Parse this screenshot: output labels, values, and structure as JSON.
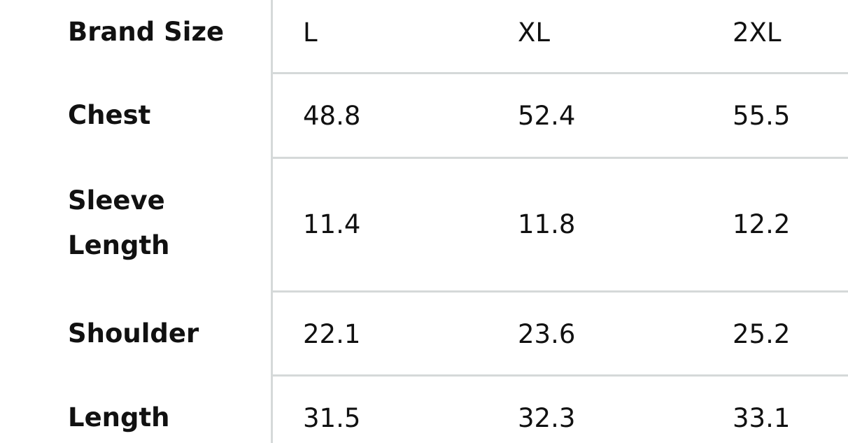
{
  "table": {
    "rows": [
      {
        "label": "Brand Size",
        "values": [
          "L",
          "XL",
          "2XL"
        ]
      },
      {
        "label": "Chest",
        "values": [
          "48.8",
          "52.4",
          "55.5"
        ]
      },
      {
        "label": "Sleeve Length",
        "values": [
          "11.4",
          "11.8",
          "12.2"
        ]
      },
      {
        "label": "Shoulder",
        "values": [
          "22.1",
          "23.6",
          "25.2"
        ]
      },
      {
        "label": "Length",
        "values": [
          "31.5",
          "32.3",
          "33.1"
        ]
      }
    ]
  },
  "colors": {
    "text": "#111111",
    "divider": "#d5d9d9"
  }
}
